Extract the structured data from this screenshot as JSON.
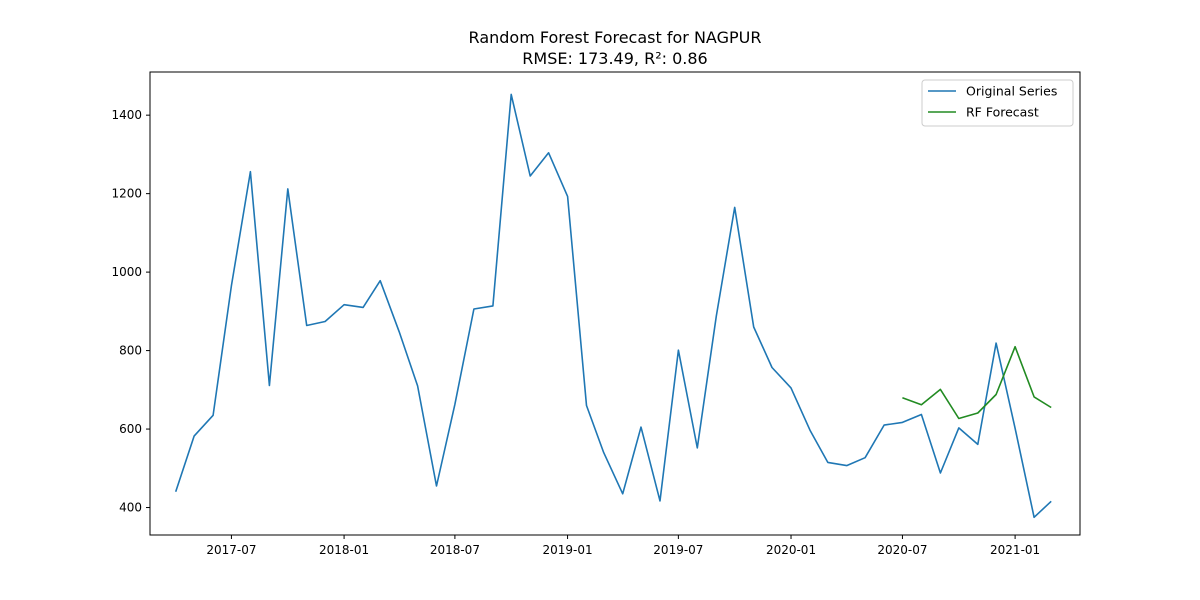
{
  "chart_data": {
    "type": "line",
    "title": "Random Forest Forecast for NAGPUR",
    "subtitle": "RMSE: 173.49, R²: 0.86",
    "xlabel": "",
    "ylabel": "",
    "x_ticks": [
      "2017-07",
      "2018-01",
      "2018-07",
      "2019-01",
      "2019-07",
      "2020-01",
      "2020-07",
      "2021-01"
    ],
    "y_ticks": [
      400,
      600,
      800,
      1000,
      1200,
      1400
    ],
    "ylim": [
      330,
      1510
    ],
    "xlim": [
      "2017-02-18",
      "2021-04-17"
    ],
    "grid": false,
    "legend_position": "top-right",
    "series": [
      {
        "name": "Original Series",
        "color": "#1f77b4",
        "x": [
          "2017-04",
          "2017-05",
          "2017-06",
          "2017-07",
          "2017-08",
          "2017-09",
          "2017-10",
          "2017-11",
          "2017-12",
          "2018-01",
          "2018-02",
          "2018-03",
          "2018-04",
          "2018-05",
          "2018-06",
          "2018-07",
          "2018-08",
          "2018-09",
          "2018-10",
          "2018-11",
          "2018-12",
          "2019-01",
          "2019-02",
          "2019-03",
          "2019-04",
          "2019-05",
          "2019-06",
          "2019-07",
          "2019-08",
          "2019-09",
          "2019-10",
          "2019-11",
          "2019-12",
          "2020-01",
          "2020-02",
          "2020-03",
          "2020-04",
          "2020-05",
          "2020-06",
          "2020-07",
          "2020-08",
          "2020-09",
          "2020-10",
          "2020-11",
          "2020-12",
          "2021-01",
          "2021-02",
          "2021-03"
        ],
        "values": [
          440,
          582,
          635,
          965,
          1256,
          711,
          1212,
          864,
          874,
          917,
          910,
          978,
          848,
          710,
          455,
          663,
          906,
          914,
          1453,
          1245,
          1304,
          1193,
          660,
          540,
          435,
          605,
          417,
          801,
          552,
          888,
          1165,
          860,
          757,
          705,
          597,
          515,
          507,
          527,
          610,
          617,
          637,
          488,
          603,
          561,
          819,
          602,
          375,
          416
        ]
      },
      {
        "name": "RF Forecast",
        "color": "#228b22",
        "x": [
          "2020-07",
          "2020-08",
          "2020-09",
          "2020-10",
          "2020-11",
          "2020-12",
          "2021-01",
          "2021-02",
          "2021-03"
        ],
        "values": [
          680,
          662,
          701,
          627,
          641,
          688,
          810,
          682,
          655
        ]
      }
    ]
  }
}
